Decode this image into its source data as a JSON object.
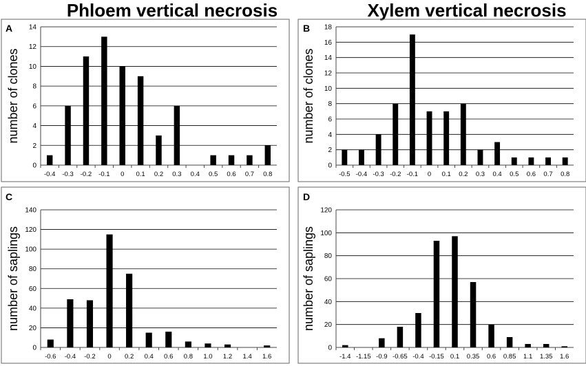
{
  "column_titles": {
    "left": "Phloem vertical necrosis",
    "right": "Xylem vertical necrosis"
  },
  "colors": {
    "bar": "#000000",
    "grid": "#000000",
    "axis": "#444444",
    "frame": "#666666"
  },
  "chart_data": [
    {
      "type": "bar",
      "panel_label": "A",
      "title": "",
      "xlabel": "",
      "ylabel": "number of clones",
      "ylim": [
        0,
        14
      ],
      "yticks": [
        "0",
        "2",
        "4",
        "6",
        "8",
        "10",
        "12",
        "14"
      ],
      "categories": [
        "-0.4",
        "-0.3",
        "-0.2",
        "-0.1",
        "0",
        "0.1",
        "0.2",
        "0.3",
        "0.4",
        "0.5",
        "0.6",
        "0.7",
        "0.8"
      ],
      "values": [
        1,
        6,
        11,
        13,
        10,
        9,
        3,
        6,
        0,
        1,
        1,
        1,
        2
      ],
      "grid": true
    },
    {
      "type": "bar",
      "panel_label": "B",
      "title": "",
      "xlabel": "",
      "ylabel": "number of clones",
      "ylim": [
        0,
        18
      ],
      "yticks": [
        "0",
        "2",
        "4",
        "6",
        "8",
        "10",
        "12",
        "14",
        "16",
        "18"
      ],
      "categories": [
        "-0.5",
        "-0.4",
        "-0.3",
        "-0.2",
        "-0.1",
        "0",
        "0.1",
        "0.2",
        "0.3",
        "0.4",
        "0.5",
        "0.6",
        "0.7",
        "0.8"
      ],
      "values": [
        2,
        2,
        4,
        8,
        17,
        7,
        7,
        8,
        2,
        3,
        1,
        1,
        1,
        1
      ],
      "grid": true
    },
    {
      "type": "bar",
      "panel_label": "C",
      "title": "",
      "xlabel": "",
      "ylabel": "number of saplings",
      "ylim": [
        0,
        140
      ],
      "yticks": [
        "0",
        "20",
        "40",
        "60",
        "80",
        "100",
        "120",
        "140"
      ],
      "categories": [
        "-0.6",
        "-0.4",
        "-0.2",
        "0",
        "0.2",
        "0.4",
        "0.6",
        "0.8",
        "1.0",
        "1.2",
        "1.4",
        "1.6"
      ],
      "values": [
        8,
        49,
        48,
        115,
        75,
        15,
        16,
        6,
        4,
        3,
        0,
        2
      ],
      "grid": true
    },
    {
      "type": "bar",
      "panel_label": "D",
      "title": "",
      "xlabel": "",
      "ylabel": "number of saplings",
      "ylim": [
        0,
        120
      ],
      "yticks": [
        "0",
        "20",
        "40",
        "60",
        "80",
        "100",
        "120"
      ],
      "categories": [
        "-1.4",
        "-1.15",
        "-0.9",
        "-0.65",
        "-0.4",
        "-0.15",
        "0.1",
        "0.35",
        "0.6",
        "0.85",
        "1.1",
        "1.35",
        "1.6"
      ],
      "values": [
        2,
        0,
        8,
        18,
        30,
        93,
        97,
        57,
        20,
        9,
        3,
        3,
        1
      ],
      "grid": true
    }
  ]
}
